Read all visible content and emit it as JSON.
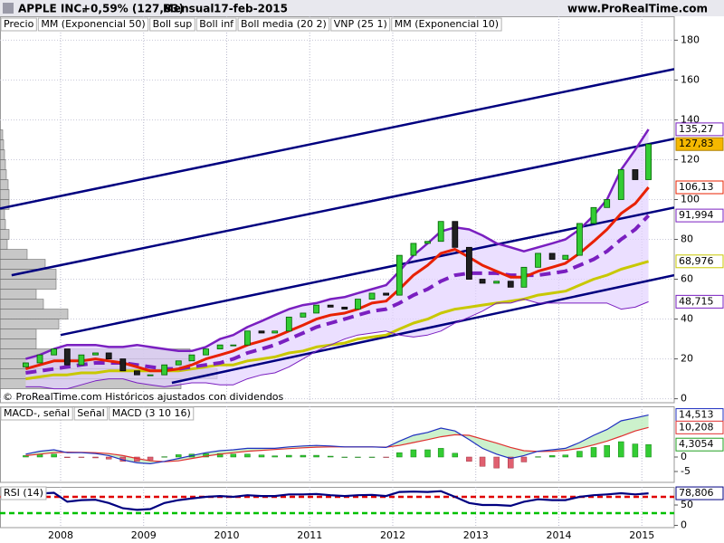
{
  "header": {
    "title": "APPLE INC.",
    "change": "+0,59% (127,83)",
    "period": "Mensual",
    "date": "17-feb-2015",
    "site": "www.ProRealTime.com"
  },
  "chart_data": [
    {
      "type": "candlestick",
      "xlim": [
        2007.27,
        2015.39
      ],
      "ylim": [
        -2,
        192
      ],
      "yticks": [
        0,
        20,
        40,
        60,
        80,
        100,
        120,
        140,
        160,
        180
      ],
      "grid": true,
      "note": "© ProRealTime.com  Históricos ajustados con dividendos",
      "x": [
        2007.58,
        2007.75,
        2007.92,
        2008.08,
        2008.25,
        2008.42,
        2008.58,
        2008.75,
        2008.92,
        2009.08,
        2009.25,
        2009.42,
        2009.58,
        2009.75,
        2009.92,
        2010.08,
        2010.25,
        2010.42,
        2010.58,
        2010.75,
        2010.92,
        2011.08,
        2011.25,
        2011.42,
        2011.58,
        2011.75,
        2011.92,
        2012.08,
        2012.25,
        2012.42,
        2012.58,
        2012.75,
        2012.92,
        2013.08,
        2013.25,
        2013.42,
        2013.58,
        2013.75,
        2013.92,
        2014.08,
        2014.25,
        2014.42,
        2014.58,
        2014.75,
        2014.92,
        2015.08
      ],
      "price": {
        "name": "Precio",
        "up_color": "#33cc33",
        "down_color": "#202020",
        "label_color": "#f5b800",
        "last_label": "127,83",
        "open": [
          16,
          18,
          22,
          25,
          17,
          22,
          23,
          20,
          14,
          12,
          12,
          17,
          19,
          22,
          25,
          27,
          27,
          34,
          33,
          34,
          41,
          43,
          47,
          46,
          45,
          50,
          53,
          52,
          72,
          78,
          79,
          89,
          76,
          60,
          58,
          59,
          56,
          66,
          73,
          70,
          72,
          88,
          96,
          100,
          115,
          110
        ],
        "close": [
          18,
          22,
          25,
          17,
          22,
          23,
          20,
          14,
          12,
          12,
          17,
          19,
          22,
          25,
          27,
          27,
          34,
          33,
          34,
          41,
          43,
          47,
          46,
          45,
          50,
          53,
          52,
          72,
          78,
          79,
          89,
          76,
          60,
          58,
          59,
          56,
          66,
          73,
          70,
          72,
          88,
          96,
          100,
          115,
          110,
          127.83
        ]
      },
      "series": [
        {
          "name": "MM (Exponencial 50)",
          "color": "#c8c800",
          "last_label": "68,976",
          "values": [
            10,
            11,
            12,
            12,
            13,
            13,
            14,
            14,
            14,
            14,
            14,
            14,
            15,
            16,
            17,
            17,
            19,
            20,
            21,
            23,
            24,
            26,
            27,
            28,
            30,
            31,
            32,
            35,
            38,
            40,
            43,
            45,
            46,
            47,
            48,
            49,
            50,
            52,
            53,
            54,
            57,
            60,
            62,
            65,
            67,
            68.976
          ]
        },
        {
          "name": "Boll sup",
          "color": "#7a1fc0",
          "last_label": "135,27",
          "values": [
            20,
            22,
            25,
            27,
            27,
            27,
            26,
            26,
            27,
            26,
            25,
            24,
            24,
            26,
            30,
            32,
            36,
            39,
            42,
            45,
            47,
            48,
            50,
            51,
            53,
            55,
            57,
            64,
            72,
            78,
            84,
            86,
            85,
            82,
            78,
            76,
            74,
            76,
            78,
            80,
            85,
            92,
            100,
            115,
            125,
            135.27
          ]
        },
        {
          "name": "Boll inf",
          "color": "#7a1fc0",
          "fill": "#e2d2ff",
          "last_label": "48,715",
          "values": [
            6,
            6,
            5,
            5,
            7,
            9,
            10,
            10,
            8,
            7,
            6,
            7,
            8,
            8,
            7,
            7,
            10,
            12,
            13,
            16,
            20,
            24,
            27,
            30,
            32,
            33,
            34,
            32,
            31,
            32,
            34,
            38,
            41,
            44,
            48,
            48,
            50,
            48,
            48,
            48,
            48,
            48,
            48,
            45,
            46,
            48.715
          ]
        },
        {
          "name": "Boll media (20 2)",
          "color": "#7a1fc0",
          "style": "dashed",
          "last_label": "91,994",
          "values": [
            13,
            14,
            15,
            16,
            17,
            18,
            18,
            18,
            17,
            16,
            15,
            15,
            16,
            17,
            18,
            20,
            23,
            25,
            27,
            30,
            33,
            36,
            38,
            40,
            42,
            44,
            45,
            48,
            52,
            55,
            59,
            62,
            63,
            63,
            63,
            62,
            62,
            62,
            63,
            64,
            67,
            70,
            74,
            80,
            85,
            91.994
          ]
        },
        {
          "name": "MM (Exponencial 10)",
          "color": "#e82000",
          "last_label": "106,13",
          "values": [
            15,
            17,
            19,
            19,
            19,
            20,
            19,
            18,
            16,
            14,
            14,
            15,
            17,
            20,
            22,
            24,
            27,
            29,
            31,
            34,
            37,
            40,
            42,
            43,
            45,
            48,
            49,
            55,
            62,
            67,
            73,
            75,
            71,
            67,
            64,
            61,
            61,
            64,
            66,
            68,
            73,
            79,
            85,
            93,
            98,
            106.13
          ]
        }
      ],
      "vnp": {
        "name": "VNP (25 1)",
        "color": "#b4b4b4",
        "bins": [
          5,
          10,
          15,
          20,
          25,
          30,
          35,
          40,
          45,
          50,
          55,
          60,
          65,
          70,
          75,
          80,
          85,
          90,
          95,
          100,
          105,
          110,
          115,
          120,
          125,
          130,
          135
        ],
        "volumes": [
          200,
          240,
          210,
          210,
          40,
          40,
          65,
          75,
          48,
          40,
          62,
          62,
          50,
          30,
          8,
          10,
          6,
          5,
          10,
          10,
          9,
          7,
          6,
          5,
          4,
          3
        ]
      },
      "trendlines": {
        "color": "#00007f",
        "lines": [
          {
            "x": [
              2007.27,
              2015.39
            ],
            "y": [
              95.5,
              165.5
            ]
          },
          {
            "x": [
              2007.41,
              2015.39
            ],
            "y": [
              62,
              130.5
            ]
          },
          {
            "x": [
              2008.0,
              2015.39
            ],
            "y": [
              32,
              96
            ]
          },
          {
            "x": [
              2009.34,
              2015.39
            ],
            "y": [
              8,
              62
            ]
          }
        ]
      }
    },
    {
      "type": "macd",
      "xlim": [
        2007.27,
        2015.39
      ],
      "ylim": [
        -8.75,
        17.5
      ],
      "yticks": [
        -5,
        0
      ],
      "grid": false,
      "x": [
        2007.58,
        2007.75,
        2007.92,
        2008.08,
        2008.25,
        2008.42,
        2008.58,
        2008.75,
        2008.92,
        2009.08,
        2009.25,
        2009.42,
        2009.58,
        2009.75,
        2009.92,
        2010.08,
        2010.25,
        2010.42,
        2010.58,
        2010.75,
        2010.92,
        2011.08,
        2011.25,
        2011.42,
        2011.58,
        2011.75,
        2011.92,
        2012.08,
        2012.25,
        2012.42,
        2012.58,
        2012.75,
        2012.92,
        2013.08,
        2013.25,
        2013.42,
        2013.58,
        2013.75,
        2013.92,
        2014.08,
        2014.25,
        2014.42,
        2014.58,
        2014.75,
        2014.92,
        2015.08
      ],
      "histogram": {
        "name": "MACD-, señal",
        "color": "#33cc33",
        "neg_color": "#e06070",
        "last_label": "4,3054",
        "values": [
          0.5,
          1,
          1,
          -0.2,
          -0.1,
          -0.3,
          -0.7,
          -1.5,
          -1.5,
          -1,
          0.1,
          0.8,
          1,
          1.2,
          1.2,
          1,
          1,
          0.7,
          0.4,
          0.6,
          0.6,
          0.6,
          0.3,
          0,
          0,
          0,
          -0.1,
          1.5,
          2.5,
          2.5,
          3,
          1.3,
          -1.5,
          -3.2,
          -3.8,
          -3.8,
          -1.7,
          0.1,
          0.5,
          0.7,
          2,
          3.3,
          4,
          5.3,
          4.5,
          4.3054
        ]
      },
      "series": [
        {
          "name": "Señal",
          "color": "#e03030",
          "last_label": "10,208",
          "values": [
            0.5,
            1,
            1.5,
            1.7,
            1.6,
            1.5,
            1.2,
            0.5,
            -0.5,
            -1.3,
            -1.6,
            -1.3,
            -0.5,
            0.3,
            1,
            1.5,
            2,
            2.3,
            2.6,
            2.9,
            3.2,
            3.4,
            3.5,
            3.5,
            3.5,
            3.5,
            3.4,
            4,
            5,
            6,
            7,
            7.7,
            7.5,
            6.2,
            4.8,
            3.3,
            2.2,
            1.9,
            2,
            2.3,
            3,
            4.2,
            5.5,
            7.2,
            9,
            10.208
          ]
        },
        {
          "name": "MACD (3 10 16)",
          "color": "#2030c0",
          "last_label": "14,513",
          "values": [
            1,
            2,
            2.5,
            1.5,
            1.5,
            1.2,
            0.5,
            -1,
            -2,
            -2.3,
            -1.5,
            -0.5,
            0.5,
            1.5,
            2.2,
            2.5,
            3,
            3,
            3,
            3.5,
            3.8,
            4,
            3.8,
            3.5,
            3.5,
            3.5,
            3.3,
            5.5,
            7.5,
            8.5,
            10,
            9,
            6,
            3,
            1,
            -0.5,
            0.5,
            2,
            2.5,
            3,
            5,
            7.5,
            9.5,
            12.5,
            13.5,
            14.513
          ]
        }
      ]
    },
    {
      "type": "line",
      "xlim": [
        2007.27,
        2015.39
      ],
      "ylim": [
        -5.5,
        94.5
      ],
      "yticks": [
        0,
        50
      ],
      "grid": false,
      "xticks": [
        2008,
        2009,
        2010,
        2011,
        2012,
        2013,
        2014,
        2015
      ],
      "x": [
        2007.58,
        2007.75,
        2007.92,
        2008.08,
        2008.25,
        2008.42,
        2008.58,
        2008.75,
        2008.92,
        2009.08,
        2009.25,
        2009.42,
        2009.58,
        2009.75,
        2009.92,
        2010.08,
        2010.25,
        2010.42,
        2010.58,
        2010.75,
        2010.92,
        2011.08,
        2011.25,
        2011.42,
        2011.58,
        2011.75,
        2011.92,
        2012.08,
        2012.25,
        2012.42,
        2012.58,
        2012.75,
        2012.92,
        2013.08,
        2013.25,
        2013.42,
        2013.58,
        2013.75,
        2013.92,
        2014.08,
        2014.25,
        2014.42,
        2014.58,
        2014.75,
        2014.92,
        2015.08
      ],
      "series": [
        {
          "name": "RSI (14)",
          "color": "#000080",
          "last_label": "78,806",
          "values": [
            72,
            78,
            80,
            58,
            62,
            63,
            55,
            42,
            38,
            40,
            55,
            62,
            66,
            70,
            72,
            70,
            74,
            72,
            72,
            76,
            76,
            77,
            74,
            72,
            74,
            75,
            72,
            82,
            83,
            82,
            84,
            70,
            55,
            50,
            50,
            48,
            58,
            64,
            62,
            62,
            70,
            74,
            76,
            79,
            76,
            78.806
          ]
        }
      ],
      "levels": [
        {
          "value": 70,
          "color": "#e00000"
        },
        {
          "value": 30,
          "color": "#00c000"
        }
      ]
    }
  ]
}
